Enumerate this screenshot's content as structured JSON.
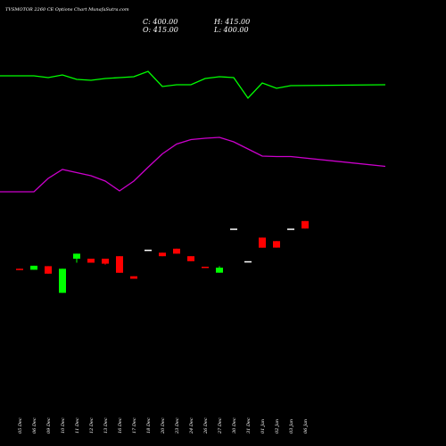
{
  "chart_data": {
    "type": "candlestick",
    "title": "TVSMOTOR 2260  CE Options  Chart MunafaSutra.com",
    "ohlc_readout": {
      "open": "O: 415.00",
      "high": "H: 415.00",
      "close": "C: 400.00",
      "low": "L: 400.00"
    },
    "x": [
      "05 Dec",
      "06 Dec",
      "09 Dec",
      "10 Dec",
      "11 Dec",
      "12 Dec",
      "13 Dec",
      "16 Dec",
      "17 Dec",
      "18 Dec",
      "20 Dec",
      "23 Dec",
      "24 Dec",
      "26 Dec",
      "27 Dec",
      "30 Dec",
      "31 Dec",
      "01 Jan",
      "02 Jan",
      "03 Jan",
      "06 Jan"
    ],
    "candles": [
      {
        "date": "05 Dec",
        "open": 320,
        "high": 320,
        "low": 319,
        "close": 319
      },
      {
        "date": "06 Dec",
        "open": 318,
        "high": 326,
        "low": 318,
        "close": 326
      },
      {
        "date": "09 Dec",
        "open": 325,
        "high": 325,
        "low": 310,
        "close": 310
      },
      {
        "date": "10 Dec",
        "open": 272,
        "high": 320,
        "low": 272,
        "close": 320
      },
      {
        "date": "11 Dec",
        "open": 340,
        "high": 350,
        "low": 332,
        "close": 350
      },
      {
        "date": "12 Dec",
        "open": 340,
        "high": 340,
        "low": 332,
        "close": 332
      },
      {
        "date": "13 Dec",
        "open": 340,
        "high": 340,
        "low": 328,
        "close": 330
      },
      {
        "date": "16 Dec",
        "open": 345,
        "high": 345,
        "low": 312,
        "close": 312
      },
      {
        "date": "17 Dec",
        "open": 305,
        "high": 305,
        "low": 300,
        "close": 300
      },
      {
        "date": "18 Dec",
        "open": 358,
        "high": 358,
        "low": 358,
        "close": 358
      },
      {
        "date": "20 Dec",
        "open": 352,
        "high": 352,
        "low": 345,
        "close": 345
      },
      {
        "date": "23 Dec",
        "open": 360,
        "high": 360,
        "low": 350,
        "close": 350
      },
      {
        "date": "24 Dec",
        "open": 345,
        "high": 345,
        "low": 335,
        "close": 335
      },
      {
        "date": "26 Dec",
        "open": 324,
        "high": 324,
        "low": 322,
        "close": 322
      },
      {
        "date": "27 Dec",
        "open": 312,
        "high": 325,
        "low": 312,
        "close": 322
      },
      {
        "date": "30 Dec",
        "open": 400,
        "high": 400,
        "low": 400,
        "close": 400
      },
      {
        "date": "31 Dec",
        "open": 335,
        "high": 335,
        "low": 335,
        "close": 335
      },
      {
        "date": "01 Jan",
        "open": 382,
        "high": 382,
        "low": 362,
        "close": 362
      },
      {
        "date": "02 Jan",
        "open": 375,
        "high": 375,
        "low": 362,
        "close": 362
      },
      {
        "date": "03 Jan",
        "open": 400,
        "high": 400,
        "low": 400,
        "close": 400
      },
      {
        "date": "06 Jan",
        "open": 415,
        "high": 415,
        "low": 400,
        "close": 400
      }
    ],
    "green_line": [
      1.3,
      1.3,
      1.28,
      1.31,
      1.26,
      1.25,
      1.27,
      1.28,
      1.29,
      1.35,
      1.18,
      1.2,
      1.2,
      1.27,
      1.29,
      1.28,
      1.05,
      1.22,
      1.16,
      1.19,
      1.2
    ],
    "purple_line": [
      0.9,
      0.9,
      1.2,
      1.4,
      1.33,
      1.26,
      1.14,
      0.92,
      1.14,
      1.45,
      1.75,
      1.97,
      2.07,
      2.1,
      2.12,
      2.02,
      1.86,
      1.7,
      1.69,
      1.69,
      1.47
    ],
    "candle_ylim": [
      260,
      420
    ],
    "green_ylim": [
      0.95,
      1.5
    ],
    "purple_ylim": [
      0.2,
      2.4
    ],
    "colors": {
      "background": "#000000",
      "up": "#00ff00",
      "down": "#ff0000",
      "neutral": "#ffffff",
      "green_line": "#00ff00",
      "purple_line": "#cc00cc"
    },
    "grid": false,
    "legend": "none"
  }
}
